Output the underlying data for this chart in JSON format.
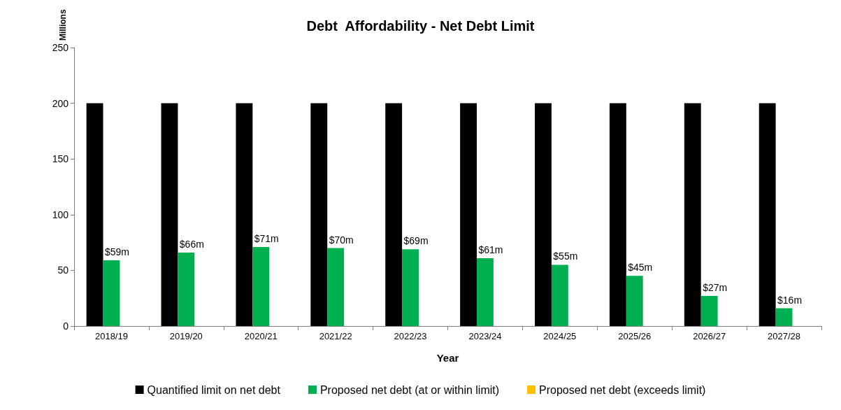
{
  "chart_data": {
    "type": "bar",
    "title": "Debt  Affordability - Net Debt Limit",
    "xlabel": "Year",
    "ylabel": "Millions",
    "categories": [
      "2018/19",
      "2019/20",
      "2020/21",
      "2021/22",
      "2022/23",
      "2023/24",
      "2024/25",
      "2025/26",
      "2026/27",
      "2027/28"
    ],
    "series": [
      {
        "name": "Quantified limit on net debt",
        "color": "#000000",
        "values": [
          200,
          200,
          200,
          200,
          200,
          200,
          200,
          200,
          200,
          200
        ]
      },
      {
        "name": "Proposed net debt (at or within limit)",
        "color": "#00b050",
        "values": [
          59,
          66,
          71,
          70,
          69,
          61,
          55,
          45,
          27,
          16
        ],
        "value_labels": [
          "$59m",
          "$66m",
          "$71m",
          "$70m",
          "$69m",
          "$61m",
          "$55m",
          "$45m",
          "$27m",
          "$16m"
        ]
      },
      {
        "name": "Proposed net debt (exceeds limit)",
        "color": "#ffc000",
        "values": [
          null,
          null,
          null,
          null,
          null,
          null,
          null,
          null,
          null,
          null
        ]
      }
    ],
    "ylim": [
      0,
      250
    ],
    "yticks": [
      0,
      50,
      100,
      150,
      200,
      250
    ],
    "grid": false,
    "legend": "bottom"
  }
}
